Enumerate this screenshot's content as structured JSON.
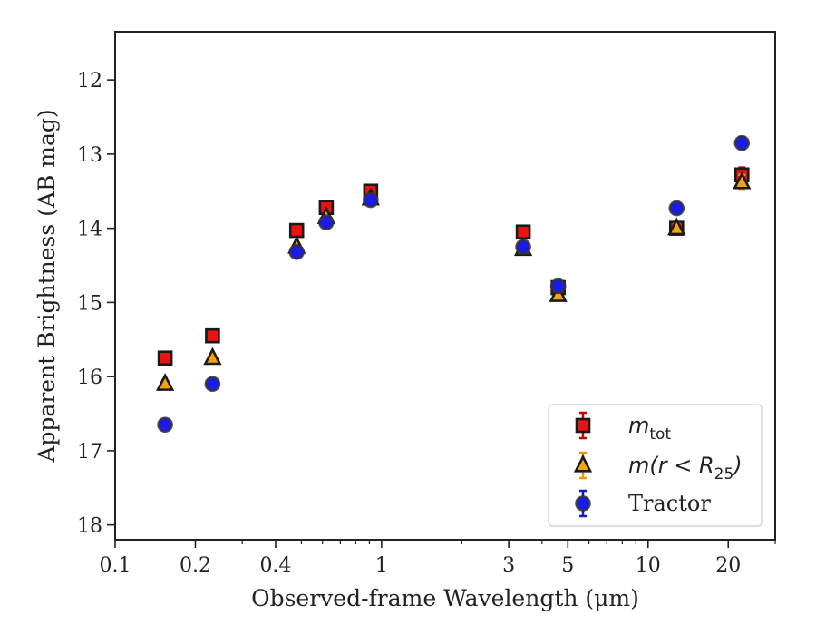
{
  "chart_data": {
    "type": "scatter",
    "xscale": "log",
    "yinverted": true,
    "xlim": [
      0.1,
      30
    ],
    "ylim": [
      18.2,
      11.35
    ],
    "xlabel": "Observed-frame Wavelength (μm)",
    "ylabel": "Apparent Brightness (AB mag)",
    "xticks": [
      0.1,
      0.2,
      0.4,
      1,
      3,
      5,
      10,
      20
    ],
    "xtick_labels": [
      "0.1",
      "0.2",
      "0.4",
      "1",
      "3",
      "5",
      "10",
      "20"
    ],
    "yticks": [
      12,
      13,
      14,
      15,
      16,
      17,
      18
    ],
    "ytick_labels": [
      "12",
      "13",
      "14",
      "15",
      "16",
      "17",
      "18"
    ],
    "grid": false,
    "legend_position": "bottom-right",
    "series": [
      {
        "name": "m_tot",
        "legend_main": "m",
        "legend_sub": "tot",
        "marker": "square",
        "color": "#ee1111",
        "errcolor": "#cc0000",
        "x": [
          0.154,
          0.232,
          0.48,
          0.62,
          0.91,
          3.4,
          4.6,
          12.8,
          22.5
        ],
        "y": [
          15.75,
          15.45,
          14.03,
          13.72,
          13.5,
          14.05,
          14.8,
          14.0,
          13.28
        ],
        "yerr": [
          0.05,
          0.05,
          0.02,
          0.02,
          0.02,
          0.02,
          0.03,
          0.06,
          0.1
        ]
      },
      {
        "name": "m(r < R25)",
        "legend_main": "m(r < R",
        "legend_sub": "25",
        "legend_tail": ")",
        "marker": "triangle",
        "color": "#f5a30f",
        "errcolor": "#e89a00",
        "x": [
          0.154,
          0.232,
          0.48,
          0.62,
          0.91,
          3.4,
          4.6,
          12.8,
          22.5
        ],
        "y": [
          16.1,
          15.75,
          14.25,
          13.85,
          13.6,
          14.28,
          14.9,
          14.0,
          13.38
        ],
        "yerr": [
          0.05,
          0.05,
          0.02,
          0.02,
          0.02,
          0.02,
          0.03,
          0.06,
          0.1
        ]
      },
      {
        "name": "Tractor",
        "marker": "circle",
        "color": "#1a1aee",
        "errcolor": "#1515cc",
        "x": [
          0.154,
          0.232,
          0.48,
          0.62,
          0.91,
          3.4,
          4.6,
          12.8,
          22.5
        ],
        "y": [
          16.65,
          16.1,
          14.32,
          13.92,
          13.62,
          14.25,
          14.78,
          13.73,
          12.85
        ],
        "yerr": [
          0.06,
          0.06,
          0.03,
          0.03,
          0.03,
          0.03,
          0.04,
          0.07,
          0.08
        ]
      }
    ]
  }
}
